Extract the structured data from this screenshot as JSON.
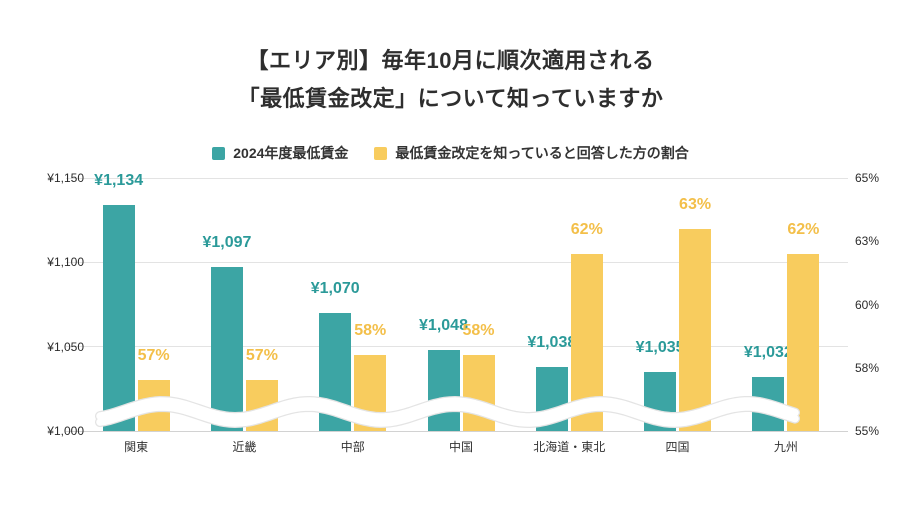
{
  "title": {
    "lines": [
      "【エリア別】毎年10月に順次適用される",
      "「最低賃金改定」について知っていますか"
    ]
  },
  "chart_data": {
    "type": "bar",
    "title": "【エリア別】毎年10月に順次適用される「最低賃金改定」について知っていますか",
    "categories": [
      "関東",
      "近畿",
      "中部",
      "中国",
      "北海道・東北",
      "四国",
      "九州"
    ],
    "series": [
      {
        "name": "2024年度最低賃金",
        "axis": "left",
        "unit": "yen",
        "color": "#3ca5a4",
        "label_color": "#2b9a99",
        "values": [
          1134,
          1097,
          1070,
          1048,
          1038,
          1035,
          1032
        ],
        "labels": [
          "¥1,134",
          "¥1,097",
          "¥1,070",
          "¥1,048",
          "¥1,038",
          "¥1,035",
          "¥1,032"
        ]
      },
      {
        "name": "最低賃金改定を知っていると回答した方の割合",
        "axis": "right",
        "unit": "percent",
        "color": "#f8cc5e",
        "label_color": "#f3bf49",
        "values": [
          57,
          57,
          58,
          58,
          62,
          63,
          62
        ],
        "labels": [
          "57%",
          "57%",
          "58%",
          "58%",
          "62%",
          "63%",
          "62%"
        ]
      }
    ],
    "left_axis": {
      "min": 1000,
      "max": 1150,
      "ticks": [
        {
          "value": 1150,
          "label": "¥1,150"
        },
        {
          "value": 1100,
          "label": "¥1,100"
        },
        {
          "value": 1050,
          "label": "¥1,050"
        },
        {
          "value": 1000,
          "label": "¥1,000"
        }
      ]
    },
    "right_axis": {
      "min": 55,
      "max": 65,
      "ticks": [
        {
          "value": 65,
          "label": "65%"
        },
        {
          "value": 62.5,
          "label": "63%"
        },
        {
          "value": 60,
          "label": "60%"
        },
        {
          "value": 57.5,
          "label": "58%"
        },
        {
          "value": 55,
          "label": "55%"
        }
      ]
    },
    "grid": "horizontal",
    "legend_position": "top",
    "axis_break_indicator": true,
    "background": "#ffffff"
  }
}
